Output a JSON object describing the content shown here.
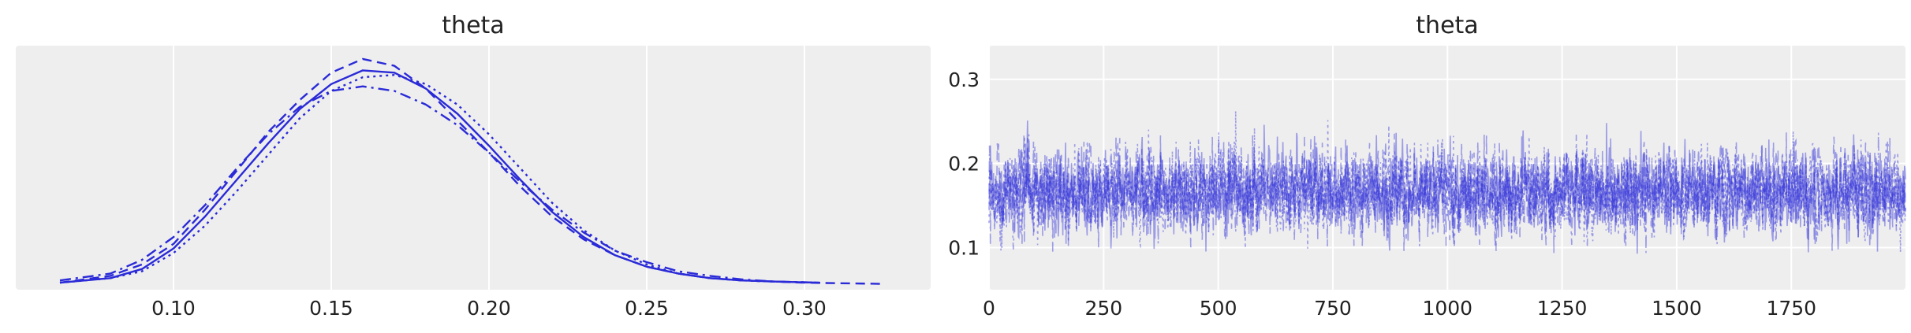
{
  "colors": {
    "background": "#ffffff",
    "panel": "#eeeeee",
    "grid": "#ffffff",
    "series": "#2a2ad8"
  },
  "chart_data": [
    {
      "type": "line",
      "title": "theta",
      "xlabel": "",
      "ylabel": "",
      "xlim": [
        0.05,
        0.34
      ],
      "ylim": [
        0,
        1
      ],
      "xticks": [
        "0.10",
        "0.15",
        "0.20",
        "0.25",
        "0.30"
      ],
      "yticks": [],
      "grid": "vertical",
      "legend": "none",
      "line_styles": [
        "solid",
        "dashed",
        "dotted",
        "dashdot"
      ],
      "series": [
        {
          "x": [
            0.064,
            0.08,
            0.09,
            0.1,
            0.11,
            0.12,
            0.13,
            0.14,
            0.15,
            0.16,
            0.17,
            0.18,
            0.19,
            0.2,
            0.21,
            0.22,
            0.23,
            0.24,
            0.25,
            0.26,
            0.27,
            0.28,
            0.29,
            0.305
          ],
          "y": [
            0.01,
            0.03,
            0.07,
            0.16,
            0.3,
            0.46,
            0.62,
            0.77,
            0.88,
            0.94,
            0.93,
            0.86,
            0.75,
            0.61,
            0.46,
            0.32,
            0.21,
            0.13,
            0.08,
            0.05,
            0.03,
            0.02,
            0.015,
            0.01
          ]
        },
        {
          "x": [
            0.064,
            0.08,
            0.09,
            0.1,
            0.11,
            0.12,
            0.13,
            0.14,
            0.15,
            0.16,
            0.17,
            0.18,
            0.19,
            0.2,
            0.21,
            0.22,
            0.23,
            0.24,
            0.25,
            0.26,
            0.27,
            0.28,
            0.29,
            0.3,
            0.325
          ],
          "y": [
            0.01,
            0.04,
            0.09,
            0.18,
            0.33,
            0.5,
            0.67,
            0.81,
            0.93,
            0.99,
            0.96,
            0.86,
            0.72,
            0.58,
            0.43,
            0.3,
            0.2,
            0.13,
            0.08,
            0.05,
            0.03,
            0.02,
            0.015,
            0.01,
            0.005
          ]
        },
        {
          "x": [
            0.064,
            0.08,
            0.09,
            0.1,
            0.11,
            0.12,
            0.13,
            0.14,
            0.15,
            0.16,
            0.17,
            0.18,
            0.19,
            0.2,
            0.21,
            0.22,
            0.23,
            0.24,
            0.25,
            0.26,
            0.27,
            0.28,
            0.29,
            0.305
          ],
          "y": [
            0.01,
            0.03,
            0.06,
            0.14,
            0.26,
            0.41,
            0.57,
            0.73,
            0.85,
            0.91,
            0.92,
            0.88,
            0.79,
            0.66,
            0.51,
            0.36,
            0.24,
            0.15,
            0.09,
            0.05,
            0.03,
            0.02,
            0.015,
            0.01
          ]
        },
        {
          "x": [
            0.064,
            0.08,
            0.09,
            0.1,
            0.11,
            0.12,
            0.13,
            0.14,
            0.15,
            0.16,
            0.17,
            0.18,
            0.19,
            0.2,
            0.21,
            0.22,
            0.23,
            0.24,
            0.25,
            0.26,
            0.27,
            0.28,
            0.29,
            0.305
          ],
          "y": [
            0.02,
            0.05,
            0.11,
            0.21,
            0.35,
            0.51,
            0.66,
            0.78,
            0.85,
            0.87,
            0.85,
            0.79,
            0.7,
            0.58,
            0.45,
            0.33,
            0.23,
            0.15,
            0.1,
            0.06,
            0.04,
            0.025,
            0.015,
            0.01
          ]
        }
      ]
    },
    {
      "type": "line",
      "title": "theta",
      "xlabel": "",
      "ylabel": "",
      "xlim": [
        0,
        1999
      ],
      "ylim": [
        0.05,
        0.34
      ],
      "xticks": [
        "0",
        "250",
        "500",
        "750",
        "1000",
        "1250",
        "1500",
        "1750"
      ],
      "yticks": [
        "0.1",
        "0.2",
        "0.3"
      ],
      "grid": "both",
      "legend": "none",
      "draws": 2000,
      "chains": 4,
      "typical_center": 0.165,
      "typical_range": [
        0.07,
        0.32
      ],
      "line_styles": [
        "solid",
        "dashed",
        "dotted",
        "dashdot"
      ]
    }
  ]
}
